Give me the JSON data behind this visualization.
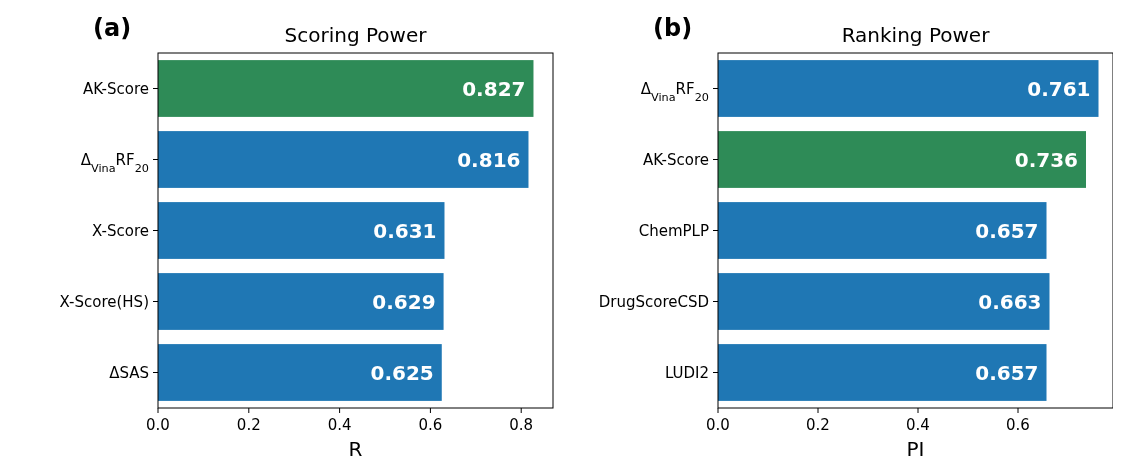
{
  "chart_data": [
    {
      "type": "bar",
      "orientation": "horizontal",
      "title": "Scoring Power",
      "xlabel": "R",
      "annotations": [
        "(a)"
      ],
      "categories": [
        "AK-Score",
        "Δ$_{Vina}$RF$_{20}$",
        "X-Score",
        "X-Score(HS)",
        "ΔSAS"
      ],
      "values": [
        0.827,
        0.816,
        0.631,
        0.629,
        0.625
      ],
      "colors": [
        "#2e8b57",
        "#1f77b4",
        "#1f77b4",
        "#1f77b4",
        "#1f77b4"
      ],
      "xlim": [
        0,
        0.87
      ],
      "xticks": [
        {
          "value": 0,
          "label": "0.0"
        },
        {
          "value": 0.2,
          "label": "0.2"
        },
        {
          "value": 0.4,
          "label": "0.4"
        },
        {
          "value": 0.6,
          "label": "0.6"
        },
        {
          "value": 0.8,
          "label": "0.8"
        }
      ],
      "data_labels": true
    },
    {
      "type": "bar",
      "orientation": "horizontal",
      "title": "Ranking Power",
      "xlabel": "PI",
      "annotations": [
        "(b)"
      ],
      "categories": [
        "Δ$_{Vina}$RF$_{20}$",
        "AK-Score",
        "ChemPLP",
        "DrugScoreCSD",
        "LUDI2"
      ],
      "values": [
        0.761,
        0.736,
        0.657,
        0.663,
        0.657
      ],
      "colors": [
        "#1f77b4",
        "#2e8b57",
        "#1f77b4",
        "#1f77b4",
        "#1f77b4"
      ],
      "xlim": [
        0,
        0.79
      ],
      "xticks": [
        {
          "value": 0,
          "label": "0.0"
        },
        {
          "value": 0.2,
          "label": "0.2"
        },
        {
          "value": 0.4,
          "label": "0.4"
        },
        {
          "value": 0.6,
          "label": "0.6"
        }
      ],
      "data_labels": true
    }
  ]
}
